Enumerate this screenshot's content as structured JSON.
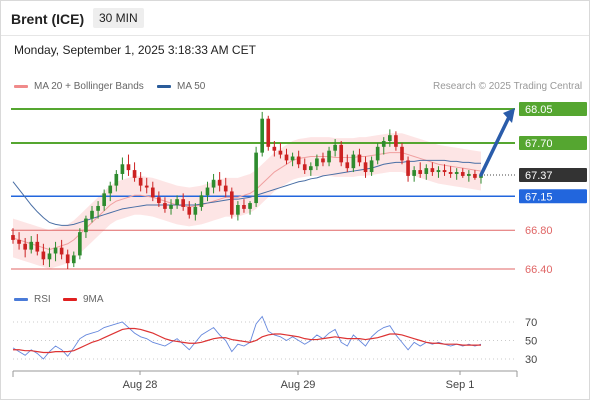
{
  "header": {
    "instrument": "Brent (ICE)",
    "timeframe": "30 MIN",
    "datetime": "Monday, September 1, 2025 3:18:33 AM CET"
  },
  "legend_main": {
    "bb_label": "MA 20 + Bollinger Bands",
    "ma50_label": "MA 50",
    "copyright": "Research © 2025 Trading Central"
  },
  "legend_rsi": {
    "rsi_label": "RSI",
    "ma9_label": "9MA"
  },
  "colors": {
    "bollinger_fill": "#fde0e0",
    "ma20": "#f0a0a0",
    "ma50": "#4a6fa5",
    "bull": "#2e8b2e",
    "bear": "#cc2222",
    "resistance": "#55a630",
    "support_blue": "#2266dd",
    "support_red": "#e06666",
    "arrow": "#2a5caa",
    "current": "#333333",
    "rsi": "#6688dd",
    "rsi_ma": "#dd3333"
  },
  "chart_data": [
    {
      "type": "candlestick",
      "title": "Brent (ICE) 30 MIN",
      "x_ticks": [
        "Aug 28",
        "Aug 29",
        "Sep 1"
      ],
      "ylim": [
        66.2,
        68.15
      ],
      "current_price": 67.37,
      "levels": [
        {
          "value": 68.05,
          "label": "68.05",
          "kind": "resistance"
        },
        {
          "value": 67.7,
          "label": "67.70",
          "kind": "resistance"
        },
        {
          "value": 67.37,
          "label": "67.37",
          "kind": "current"
        },
        {
          "value": 67.15,
          "label": "67.15",
          "kind": "support-primary"
        },
        {
          "value": 66.8,
          "label": "66.80",
          "kind": "support"
        },
        {
          "value": 66.4,
          "label": "66.40",
          "kind": "support"
        }
      ],
      "projection": {
        "from": 67.37,
        "to": 68.05
      },
      "ohlc": [
        [
          66.75,
          66.82,
          66.66,
          66.7
        ],
        [
          66.7,
          66.78,
          66.6,
          66.66
        ],
        [
          66.66,
          66.72,
          66.52,
          66.6
        ],
        [
          66.6,
          66.74,
          66.56,
          66.68
        ],
        [
          66.68,
          66.76,
          66.54,
          66.58
        ],
        [
          66.58,
          66.66,
          66.44,
          66.5
        ],
        [
          66.5,
          66.62,
          66.42,
          66.56
        ],
        [
          66.56,
          66.68,
          66.48,
          66.62
        ],
        [
          66.62,
          66.7,
          66.5,
          66.55
        ],
        [
          66.55,
          66.6,
          66.4,
          66.46
        ],
        [
          66.46,
          66.58,
          66.42,
          66.54
        ],
        [
          66.54,
          66.82,
          66.5,
          66.78
        ],
        [
          66.78,
          66.95,
          66.72,
          66.92
        ],
        [
          66.92,
          67.05,
          66.88,
          67.0
        ],
        [
          67.0,
          67.1,
          66.92,
          67.05
        ],
        [
          67.05,
          67.22,
          67.0,
          67.18
        ],
        [
          67.18,
          67.3,
          67.1,
          67.26
        ],
        [
          67.26,
          67.42,
          67.2,
          67.38
        ],
        [
          67.38,
          67.55,
          67.32,
          67.48
        ],
        [
          67.48,
          67.58,
          67.36,
          67.42
        ],
        [
          67.42,
          67.5,
          67.3,
          67.34
        ],
        [
          67.34,
          67.4,
          67.2,
          67.26
        ],
        [
          67.26,
          67.34,
          67.18,
          67.24
        ],
        [
          67.24,
          67.3,
          67.1,
          67.14
        ],
        [
          67.14,
          67.2,
          67.04,
          67.08
        ],
        [
          67.08,
          67.14,
          66.98,
          67.02
        ],
        [
          67.02,
          67.12,
          66.96,
          67.06
        ],
        [
          67.06,
          67.16,
          67.02,
          67.12
        ],
        [
          67.12,
          67.18,
          67.0,
          67.04
        ],
        [
          67.04,
          67.1,
          66.92,
          66.96
        ],
        [
          66.96,
          67.08,
          66.9,
          67.04
        ],
        [
          67.04,
          67.2,
          67.0,
          67.16
        ],
        [
          67.16,
          67.3,
          67.1,
          67.24
        ],
        [
          67.24,
          67.38,
          67.18,
          67.32
        ],
        [
          67.32,
          67.4,
          67.2,
          67.26
        ],
        [
          67.26,
          67.34,
          67.14,
          67.2
        ],
        [
          67.2,
          67.24,
          66.92,
          66.96
        ],
        [
          66.96,
          67.1,
          66.9,
          67.06
        ],
        [
          67.06,
          67.12,
          66.98,
          67.02
        ],
        [
          67.02,
          67.1,
          66.96,
          67.08
        ],
        [
          67.08,
          67.66,
          67.04,
          67.6
        ],
        [
          67.6,
          68.02,
          67.56,
          67.95
        ],
        [
          67.95,
          67.98,
          67.62,
          67.66
        ],
        [
          67.66,
          67.72,
          67.56,
          67.62
        ],
        [
          67.62,
          67.7,
          67.54,
          67.58
        ],
        [
          67.58,
          67.64,
          67.48,
          67.52
        ],
        [
          67.52,
          67.6,
          67.46,
          67.56
        ],
        [
          67.56,
          67.62,
          67.44,
          67.48
        ],
        [
          67.48,
          67.54,
          67.38,
          67.42
        ],
        [
          67.42,
          67.5,
          67.36,
          67.46
        ],
        [
          67.46,
          67.58,
          67.42,
          67.54
        ],
        [
          67.54,
          67.6,
          67.46,
          67.5
        ],
        [
          67.5,
          67.66,
          67.46,
          67.62
        ],
        [
          67.62,
          67.74,
          67.56,
          67.68
        ],
        [
          67.68,
          67.72,
          67.46,
          67.5
        ],
        [
          67.5,
          67.58,
          67.4,
          67.44
        ],
        [
          67.44,
          67.62,
          67.4,
          67.58
        ],
        [
          67.58,
          67.64,
          67.46,
          67.5
        ],
        [
          67.5,
          67.56,
          67.34,
          67.4
        ],
        [
          67.4,
          67.56,
          67.36,
          67.52
        ],
        [
          67.52,
          67.7,
          67.48,
          67.66
        ],
        [
          67.66,
          67.76,
          67.58,
          67.72
        ],
        [
          67.72,
          67.84,
          67.66,
          67.78
        ],
        [
          67.78,
          67.82,
          67.62,
          67.66
        ],
        [
          67.66,
          67.7,
          67.48,
          67.52
        ],
        [
          67.52,
          67.56,
          67.3,
          67.36
        ],
        [
          67.36,
          67.46,
          67.3,
          67.42
        ],
        [
          67.42,
          67.5,
          67.34,
          67.38
        ],
        [
          67.38,
          67.48,
          67.32,
          67.44
        ],
        [
          67.44,
          67.5,
          67.36,
          67.4
        ],
        [
          67.4,
          67.46,
          67.34,
          67.42
        ],
        [
          67.42,
          67.48,
          67.36,
          67.4
        ],
        [
          67.4,
          67.46,
          67.34,
          67.38
        ],
        [
          67.38,
          67.44,
          67.32,
          67.4
        ],
        [
          67.4,
          67.44,
          67.34,
          67.36
        ],
        [
          67.36,
          67.42,
          67.3,
          67.38
        ],
        [
          67.38,
          67.42,
          67.32,
          67.34
        ],
        [
          67.34,
          67.38,
          67.28,
          67.37
        ]
      ],
      "ma20": [
        66.72,
        66.7,
        66.68,
        66.66,
        66.64,
        66.62,
        66.6,
        66.62,
        66.64,
        66.66,
        66.7,
        66.76,
        66.82,
        66.88,
        66.94,
        67.0,
        67.06,
        67.1,
        67.12,
        67.14,
        67.16,
        67.16,
        67.15,
        67.14,
        67.12,
        67.1,
        67.08,
        67.06,
        67.05,
        67.04,
        67.05,
        67.06,
        67.08,
        67.1,
        67.12,
        67.14,
        67.14,
        67.14,
        67.16,
        67.18,
        67.22,
        67.28,
        67.34,
        67.4,
        67.44,
        67.48,
        67.52,
        67.54,
        67.55,
        67.56,
        67.56,
        67.56,
        67.56,
        67.55,
        67.55,
        67.55,
        67.55,
        67.56,
        67.56,
        67.57,
        67.58,
        67.59,
        67.6,
        67.6,
        67.6,
        67.58,
        67.56,
        67.54,
        67.52,
        67.5,
        67.48,
        67.47,
        67.46,
        67.45,
        67.44,
        67.43,
        67.42,
        67.41
      ],
      "ma50": [
        67.3,
        67.22,
        67.14,
        67.06,
        66.99,
        66.93,
        66.88,
        66.86,
        66.85,
        66.85,
        66.86,
        66.88,
        66.9,
        66.92,
        66.94,
        66.96,
        66.98,
        67.0,
        67.02,
        67.03,
        67.04,
        67.05,
        67.06,
        67.06,
        67.06,
        67.06,
        67.06,
        67.06,
        67.06,
        67.06,
        67.06,
        67.07,
        67.08,
        67.09,
        67.1,
        67.11,
        67.12,
        67.12,
        67.13,
        67.14,
        67.16,
        67.18,
        67.2,
        67.22,
        67.24,
        67.26,
        67.28,
        67.3,
        67.31,
        67.33,
        67.34,
        67.36,
        67.37,
        67.38,
        67.39,
        67.4,
        67.41,
        67.42,
        67.43,
        67.44,
        67.46,
        67.48,
        67.49,
        67.5,
        67.5,
        67.51,
        67.51,
        67.52,
        67.52,
        67.52,
        67.52,
        67.52,
        67.51,
        67.51,
        67.5,
        67.5,
        67.49,
        67.49
      ],
      "bb_band": 0.2
    },
    {
      "type": "line",
      "title": "RSI",
      "y_ticks": [
        "70",
        "50",
        "30"
      ],
      "ylim": [
        20,
        80
      ],
      "series": [
        {
          "name": "RSI",
          "values": [
            42,
            38,
            34,
            40,
            36,
            30,
            38,
            44,
            40,
            33,
            42,
            52,
            56,
            58,
            60,
            64,
            66,
            68,
            70,
            64,
            58,
            54,
            52,
            48,
            46,
            44,
            48,
            52,
            46,
            40,
            48,
            56,
            60,
            64,
            56,
            50,
            38,
            46,
            44,
            48,
            68,
            76,
            60,
            56,
            54,
            50,
            54,
            50,
            46,
            50,
            56,
            52,
            58,
            62,
            48,
            44,
            56,
            50,
            44,
            54,
            60,
            64,
            66,
            56,
            48,
            40,
            48,
            44,
            48,
            46,
            48,
            46,
            44,
            46,
            44,
            46,
            44,
            46
          ]
        },
        {
          "name": "9MA",
          "values": [
            40,
            40,
            39,
            39,
            38,
            37,
            37,
            38,
            38,
            38,
            39,
            42,
            45,
            48,
            50,
            53,
            56,
            59,
            62,
            63,
            63,
            62,
            60,
            58,
            55,
            52,
            50,
            49,
            48,
            47,
            47,
            48,
            50,
            52,
            53,
            53,
            51,
            50,
            49,
            48,
            50,
            54,
            56,
            57,
            57,
            56,
            55,
            54,
            52,
            51,
            51,
            52,
            53,
            54,
            53,
            52,
            52,
            52,
            51,
            52,
            53,
            55,
            57,
            57,
            56,
            54,
            52,
            50,
            48,
            47,
            47,
            46,
            46,
            46,
            45,
            45,
            45,
            45
          ]
        }
      ]
    }
  ]
}
